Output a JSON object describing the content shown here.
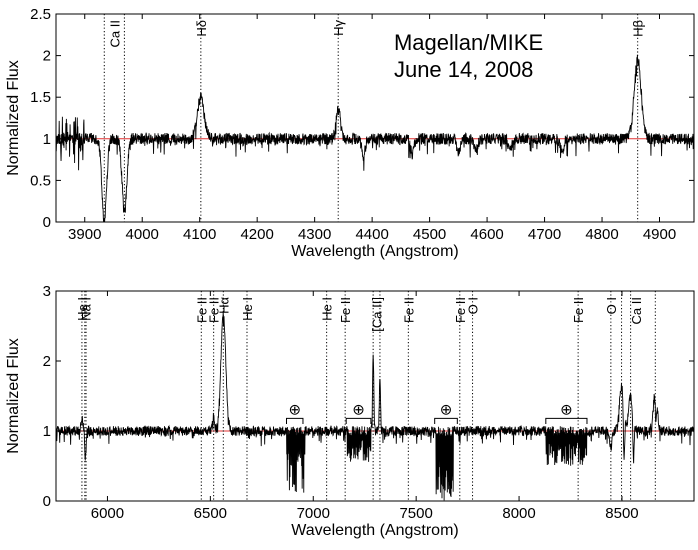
{
  "chart_data": [
    {
      "type": "line",
      "id": "top",
      "xlabel": "Wavelength  (Angstrom)",
      "ylabel": "Normalized Flux",
      "xlim": [
        3850,
        4960
      ],
      "ylim": [
        0,
        2.5
      ],
      "xticks": [
        3900,
        4000,
        4100,
        4200,
        4300,
        4400,
        4500,
        4600,
        4700,
        4800,
        4900
      ],
      "yticks": [
        0,
        0.5,
        1,
        1.5,
        2,
        2.5
      ],
      "ytick_labels": [
        "0",
        "0.5",
        "1",
        "1.5",
        "2",
        "2.5"
      ],
      "continuum": 1,
      "colors": {
        "spectrum": "#000000",
        "continuum": "#e03030"
      },
      "annotation": [
        "Magellan/MIKE",
        "June 14, 2008"
      ],
      "line_ids": [
        {
          "label": "Ca II",
          "x": [
            3934,
            3969
          ]
        },
        {
          "label": "Hδ",
          "x": [
            4102
          ]
        },
        {
          "label": "Hγ",
          "x": [
            4341
          ]
        },
        {
          "label": "Hβ",
          "x": [
            4862
          ]
        }
      ],
      "features": [
        {
          "center": 3934,
          "width": 4,
          "depth": -1.0
        },
        {
          "center": 3969,
          "width": 4,
          "depth": -0.9
        },
        {
          "center": 4102,
          "width": 6,
          "depth": 0.5
        },
        {
          "center": 4341,
          "width": 4,
          "depth": 0.35
        },
        {
          "center": 4862,
          "width": 6,
          "depth": 0.95
        },
        {
          "center": 4385,
          "width": 3,
          "depth": -0.2
        },
        {
          "center": 4470,
          "width": 3,
          "depth": -0.18
        },
        {
          "center": 4550,
          "width": 3,
          "depth": -0.15
        },
        {
          "center": 4580,
          "width": 3,
          "depth": -0.15
        },
        {
          "center": 4640,
          "width": 3,
          "depth": -0.15
        },
        {
          "center": 4730,
          "width": 3,
          "depth": -0.15
        }
      ]
    },
    {
      "type": "line",
      "id": "bottom",
      "xlabel": "Wavelength  (Angstrom)",
      "ylabel": "Normalized Flux",
      "xlim": [
        5750,
        8850
      ],
      "ylim": [
        0,
        3
      ],
      "xticks": [
        6000,
        6500,
        7000,
        7500,
        8000,
        8500
      ],
      "yticks": [
        0,
        1,
        2,
        3
      ],
      "ytick_labels": [
        "0",
        "1",
        "2",
        "3"
      ],
      "continuum": 1,
      "colors": {
        "spectrum": "#000000",
        "continuum": "#e03030"
      },
      "line_ids": [
        {
          "label": "He I",
          "x": [
            5876
          ]
        },
        {
          "label": "Na I",
          "x": [
            5890,
            5896
          ]
        },
        {
          "label": "Fe II",
          "x": [
            6456
          ]
        },
        {
          "label": "Fe II",
          "x": [
            6516
          ]
        },
        {
          "label": "Hα",
          "x": [
            6563
          ]
        },
        {
          "label": "He I",
          "x": [
            6678
          ]
        },
        {
          "label": "He I",
          "x": [
            7065
          ]
        },
        {
          "label": "Fe II",
          "x": [
            7155
          ]
        },
        {
          "label": "[Ca II]",
          "x": [
            7291,
            7324
          ]
        },
        {
          "label": "Fe II",
          "x": [
            7462
          ]
        },
        {
          "label": "Fe II",
          "x": [
            7712
          ]
        },
        {
          "label": "O I",
          "x": [
            7774
          ]
        },
        {
          "label": "Fe II",
          "x": [
            8287
          ]
        },
        {
          "label": "O I",
          "x": [
            8446
          ]
        },
        {
          "label": "Ca II",
          "x": [
            8498,
            8542,
            8662
          ]
        }
      ],
      "telluric_bands": [
        {
          "symbol": "⊕",
          "x": [
            6870,
            6950
          ]
        },
        {
          "symbol": "⊕",
          "x": [
            7160,
            7280
          ]
        },
        {
          "symbol": "⊕",
          "x": [
            7590,
            7700
          ]
        },
        {
          "symbol": "⊕",
          "x": [
            8130,
            8330
          ]
        }
      ],
      "features": [
        {
          "center": 6563,
          "width": 12,
          "depth": 1.65
        },
        {
          "center": 7291,
          "width": 3,
          "depth": 1.1
        },
        {
          "center": 7324,
          "width": 3,
          "depth": 0.75
        },
        {
          "center": 8498,
          "width": 10,
          "depth": 0.65
        },
        {
          "center": 8542,
          "width": 10,
          "depth": 0.5
        },
        {
          "center": 8662,
          "width": 10,
          "depth": 0.55
        },
        {
          "center": 5876,
          "width": 5,
          "depth": 0.2
        },
        {
          "center": 6516,
          "width": 5,
          "depth": 0.2
        },
        {
          "center": 5893,
          "width": 3,
          "depth": -0.4
        },
        {
          "center": 8510,
          "width": 3,
          "depth": -0.7
        },
        {
          "center": 8556,
          "width": 3,
          "depth": -0.6
        },
        {
          "center": 8665,
          "width": 3,
          "depth": -0.4
        },
        {
          "center": 8446,
          "width": 6,
          "depth": -0.25
        }
      ],
      "absorption_bands": [
        {
          "from": 6870,
          "to": 6960,
          "min": 0.12,
          "max": 0.85
        },
        {
          "from": 7165,
          "to": 7280,
          "min": 0.55,
          "max": 0.9
        },
        {
          "from": 7595,
          "to": 7680,
          "min": 0.0,
          "max": 0.6
        },
        {
          "from": 8130,
          "to": 8330,
          "min": 0.5,
          "max": 0.9
        }
      ]
    }
  ]
}
